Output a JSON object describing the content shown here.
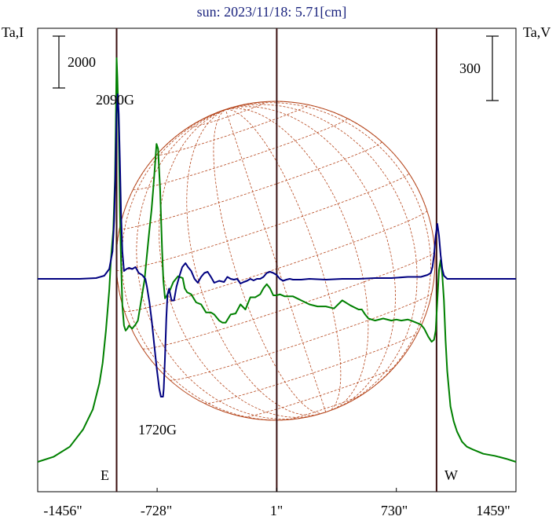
{
  "chart_data": {
    "type": "line",
    "title": "sun: 2023/11/18: 5.71[cm]",
    "ylabel_left": "Ta,I",
    "ylabel_right": "Ta,V",
    "x_unit": "arcsec",
    "xlim": [
      -1456,
      1459
    ],
    "x_ticks": [
      {
        "value": -1456,
        "label": "-1456\""
      },
      {
        "value": -728,
        "label": "-728\""
      },
      {
        "value": 1,
        "label": "1\""
      },
      {
        "value": 730,
        "label": "730\""
      },
      {
        "value": 1459,
        "label": "1459\""
      }
    ],
    "scale_bars": [
      {
        "label": "2000",
        "axis": "left"
      },
      {
        "label": "300",
        "axis": "right"
      }
    ],
    "limb_labels": [
      "E",
      "W"
    ],
    "vertical_lines": [
      -975,
      1,
      975
    ],
    "annotations": [
      {
        "text": "2090G",
        "x": -960
      },
      {
        "text": "1720G",
        "x": -690
      }
    ],
    "colors": {
      "intensity": "#008000",
      "polarization": "#000080",
      "disk": "#b5451b",
      "title": "#1a237e",
      "frame": "#000000",
      "limb_lines": "#3a1010"
    },
    "series": [
      {
        "id": "intensity",
        "x": [
          -1456,
          -1360,
          -1260,
          -1180,
          -1120,
          -1080,
          -1060,
          -1040,
          -1020,
          -1010,
          -995,
          -985,
          -980,
          -975,
          -970,
          -962,
          -955,
          -948,
          -940,
          -930,
          -920,
          -910,
          -900,
          -880,
          -860,
          -845,
          -825,
          -805,
          -790,
          -775,
          -762,
          -752,
          -742,
          -732,
          -722,
          -710,
          -698,
          -690,
          -680,
          -668,
          -650,
          -630,
          -610,
          -600,
          -588,
          -572,
          -560,
          -545,
          -520,
          -490,
          -460,
          -430,
          -400,
          -380,
          -350,
          -330,
          -310,
          -280,
          -250,
          -220,
          -190,
          -160,
          -130,
          -100,
          -80,
          -60,
          -40,
          -20,
          0,
          20,
          50,
          100,
          150,
          200,
          250,
          300,
          350,
          400,
          450,
          500,
          520,
          540,
          560,
          600,
          650,
          700,
          730,
          760,
          800,
          820,
          850,
          880,
          900,
          925,
          945,
          960,
          970,
          980,
          990,
          1000,
          1010,
          1020,
          1030,
          1040,
          1060,
          1080,
          1100,
          1130,
          1160,
          1200,
          1260,
          1330,
          1400,
          1459
        ],
        "values": [
          0,
          50,
          150,
          320,
          520,
          780,
          980,
          1300,
          1700,
          2000,
          2300,
          2800,
          3300,
          4000,
          3800,
          3300,
          2500,
          2000,
          1550,
          1350,
          1300,
          1320,
          1350,
          1320,
          1360,
          1400,
          1600,
          1800,
          2050,
          2300,
          2500,
          2700,
          2920,
          3150,
          3100,
          2700,
          2100,
          1800,
          1620,
          1650,
          1700,
          1780,
          1820,
          1840,
          1830,
          1820,
          1720,
          1680,
          1660,
          1580,
          1560,
          1480,
          1480,
          1460,
          1400,
          1380,
          1380,
          1460,
          1470,
          1560,
          1510,
          1630,
          1630,
          1660,
          1720,
          1760,
          1720,
          1650,
          1650,
          1660,
          1640,
          1640,
          1600,
          1560,
          1540,
          1540,
          1520,
          1600,
          1550,
          1510,
          1510,
          1460,
          1420,
          1400,
          1420,
          1400,
          1410,
          1400,
          1410,
          1400,
          1380,
          1360,
          1320,
          1240,
          1190,
          1210,
          1300,
          1600,
          1900,
          2000,
          1850,
          1600,
          1200,
          900,
          550,
          400,
          300,
          200,
          150,
          120,
          80,
          60,
          30,
          0
        ]
      },
      {
        "id": "polarization",
        "x": [
          -1456,
          -1200,
          -1100,
          -1050,
          -1020,
          -1000,
          -990,
          -982,
          -975,
          -968,
          -962,
          -955,
          -948,
          -940,
          -930,
          -915,
          -900,
          -880,
          -860,
          -840,
          -820,
          -800,
          -790,
          -775,
          -760,
          -745,
          -730,
          -715,
          -705,
          -697,
          -692,
          -688,
          -680,
          -672,
          -665,
          -655,
          -640,
          -625,
          -610,
          -600,
          -590,
          -575,
          -555,
          -540,
          -520,
          -500,
          -480,
          -460,
          -440,
          -420,
          -400,
          -380,
          -350,
          -320,
          -300,
          -280,
          -260,
          -240,
          -220,
          -200,
          -180,
          -160,
          -140,
          -120,
          -100,
          -80,
          -60,
          -40,
          -20,
          0,
          20,
          40,
          60,
          80,
          100,
          150,
          200,
          300,
          400,
          500,
          600,
          700,
          800,
          880,
          920,
          940,
          950,
          960,
          970,
          980,
          990,
          1000,
          1010,
          1020,
          1040,
          1060,
          1100,
          1200,
          1300,
          1459
        ],
        "values": [
          0,
          0,
          2,
          8,
          25,
          70,
          150,
          270,
          420,
          470,
          420,
          300,
          170,
          70,
          20,
          25,
          28,
          25,
          30,
          15,
          10,
          0,
          -20,
          -60,
          -110,
          -170,
          -230,
          -280,
          -300,
          -300,
          -300,
          -280,
          -200,
          -100,
          -40,
          -25,
          -55,
          -55,
          -20,
          -5,
          10,
          30,
          40,
          30,
          20,
          0,
          -10,
          5,
          15,
          18,
          5,
          -10,
          -5,
          -8,
          5,
          0,
          -2,
          0,
          -12,
          -8,
          -5,
          0,
          -4,
          0,
          0,
          5,
          15,
          18,
          15,
          10,
          0,
          -5,
          -2,
          0,
          -2,
          -2,
          0,
          -2,
          0,
          0,
          2,
          2,
          5,
          5,
          10,
          15,
          30,
          60,
          110,
          140,
          110,
          60,
          25,
          8,
          0,
          0,
          0,
          0,
          0,
          0
        ]
      }
    ]
  }
}
